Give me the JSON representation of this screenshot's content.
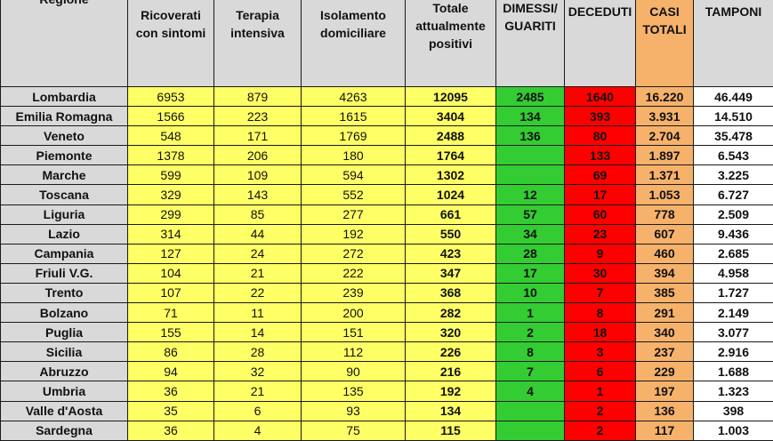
{
  "headers": {
    "regione": "Regione",
    "ricoverati": "Ricoverati con sintomi",
    "terapia": "Terapia intensiva",
    "isolamento": "Isolamento domiciliare",
    "totale": "Totale attualmente positivi",
    "dimessi": "DIMESSI/ GUARITI",
    "deceduti": "DECEDUTI",
    "casi": "CASI TOTALI",
    "tamponi": "TAMPONI"
  },
  "colors": {
    "yellow": "#ffff66",
    "green": "#33cc33",
    "red": "#ff0000",
    "orange": "#f6b26b",
    "grey": "#d9d9d9"
  },
  "rows": [
    {
      "regione": "Lombardia",
      "ricoverati": "6953",
      "terapia": "879",
      "isolamento": "4263",
      "totale": "12095",
      "dimessi": "2485",
      "deceduti": "1640",
      "casi": "16.220",
      "tamponi": "46.449"
    },
    {
      "regione": "Emilia Romagna",
      "ricoverati": "1566",
      "terapia": "223",
      "isolamento": "1615",
      "totale": "3404",
      "dimessi": "134",
      "deceduti": "393",
      "casi": "3.931",
      "tamponi": "14.510"
    },
    {
      "regione": "Veneto",
      "ricoverati": "548",
      "terapia": "171",
      "isolamento": "1769",
      "totale": "2488",
      "dimessi": "136",
      "deceduti": "80",
      "casi": "2.704",
      "tamponi": "35.478"
    },
    {
      "regione": "Piemonte",
      "ricoverati": "1378",
      "terapia": "206",
      "isolamento": "180",
      "totale": "1764",
      "dimessi": "",
      "deceduti": "133",
      "casi": "1.897",
      "tamponi": "6.543"
    },
    {
      "regione": "Marche",
      "ricoverati": "599",
      "terapia": "109",
      "isolamento": "594",
      "totale": "1302",
      "dimessi": "",
      "deceduti": "69",
      "casi": "1.371",
      "tamponi": "3.225"
    },
    {
      "regione": "Toscana",
      "ricoverati": "329",
      "terapia": "143",
      "isolamento": "552",
      "totale": "1024",
      "dimessi": "12",
      "deceduti": "17",
      "casi": "1.053",
      "tamponi": "6.727"
    },
    {
      "regione": "Liguria",
      "ricoverati": "299",
      "terapia": "85",
      "isolamento": "277",
      "totale": "661",
      "dimessi": "57",
      "deceduti": "60",
      "casi": "778",
      "tamponi": "2.509"
    },
    {
      "regione": "Lazio",
      "ricoverati": "314",
      "terapia": "44",
      "isolamento": "192",
      "totale": "550",
      "dimessi": "34",
      "deceduti": "23",
      "casi": "607",
      "tamponi": "9.436"
    },
    {
      "regione": "Campania",
      "ricoverati": "127",
      "terapia": "24",
      "isolamento": "272",
      "totale": "423",
      "dimessi": "28",
      "deceduti": "9",
      "casi": "460",
      "tamponi": "2.685"
    },
    {
      "regione": "Friuli V.G.",
      "ricoverati": "104",
      "terapia": "21",
      "isolamento": "222",
      "totale": "347",
      "dimessi": "17",
      "deceduti": "30",
      "casi": "394",
      "tamponi": "4.958"
    },
    {
      "regione": "Trento",
      "ricoverati": "107",
      "terapia": "22",
      "isolamento": "239",
      "totale": "368",
      "dimessi": "10",
      "deceduti": "7",
      "casi": "385",
      "tamponi": "1.727"
    },
    {
      "regione": "Bolzano",
      "ricoverati": "71",
      "terapia": "11",
      "isolamento": "200",
      "totale": "282",
      "dimessi": "1",
      "deceduti": "8",
      "casi": "291",
      "tamponi": "2.149"
    },
    {
      "regione": "Puglia",
      "ricoverati": "155",
      "terapia": "14",
      "isolamento": "151",
      "totale": "320",
      "dimessi": "2",
      "deceduti": "18",
      "casi": "340",
      "tamponi": "3.077"
    },
    {
      "regione": "Sicilia",
      "ricoverati": "86",
      "terapia": "28",
      "isolamento": "112",
      "totale": "226",
      "dimessi": "8",
      "deceduti": "3",
      "casi": "237",
      "tamponi": "2.916"
    },
    {
      "regione": "Abruzzo",
      "ricoverati": "94",
      "terapia": "32",
      "isolamento": "90",
      "totale": "216",
      "dimessi": "7",
      "deceduti": "6",
      "casi": "229",
      "tamponi": "1.688"
    },
    {
      "regione": "Umbria",
      "ricoverati": "36",
      "terapia": "21",
      "isolamento": "135",
      "totale": "192",
      "dimessi": "4",
      "deceduti": "1",
      "casi": "197",
      "tamponi": "1.323"
    },
    {
      "regione": "Valle d'Aosta",
      "ricoverati": "35",
      "terapia": "6",
      "isolamento": "93",
      "totale": "134",
      "dimessi": "",
      "deceduti": "2",
      "casi": "136",
      "tamponi": "398"
    },
    {
      "regione": "Sardegna",
      "ricoverati": "36",
      "terapia": "4",
      "isolamento": "75",
      "totale": "115",
      "dimessi": "",
      "deceduti": "2",
      "casi": "117",
      "tamponi": "1.003"
    }
  ]
}
